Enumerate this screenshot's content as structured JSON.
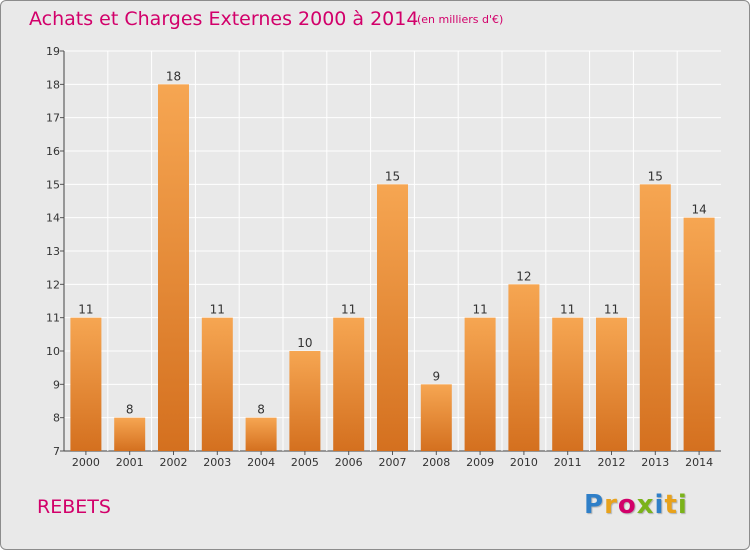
{
  "header": {
    "title": "Achats et Charges Externes 2000 à 2014",
    "subtitle": "(en milliers d'€)"
  },
  "footer": {
    "town": "REBETS",
    "logo_letters": [
      "P",
      "r",
      "o",
      "x",
      "i",
      "t",
      "i"
    ],
    "logo_colors": [
      "#2f7fc8",
      "#e8a21b",
      "#d2006a",
      "#7bb31a",
      "#2f7fc8",
      "#e8a21b",
      "#7bb31a"
    ]
  },
  "colors": {
    "bar_light": "#f6a652",
    "bar_dark": "#d4701f",
    "background": "#e9e9e9",
    "grid": "#ffffff"
  },
  "chart_data": {
    "type": "bar",
    "title": "Achats et Charges Externes 2000 à 2014",
    "subtitle": "(en milliers d'€)",
    "categories": [
      "2000",
      "2001",
      "2002",
      "2003",
      "2004",
      "2005",
      "2006",
      "2007",
      "2008",
      "2009",
      "2010",
      "2011",
      "2012",
      "2013",
      "2014"
    ],
    "values": [
      11,
      8,
      18,
      11,
      8,
      10,
      11,
      15,
      9,
      11,
      12,
      11,
      11,
      15,
      14
    ],
    "ylim": [
      7,
      19
    ],
    "yticks": [
      7,
      8,
      9,
      10,
      11,
      12,
      13,
      14,
      15,
      16,
      17,
      18,
      19
    ],
    "grid": true,
    "data_labels": true
  }
}
